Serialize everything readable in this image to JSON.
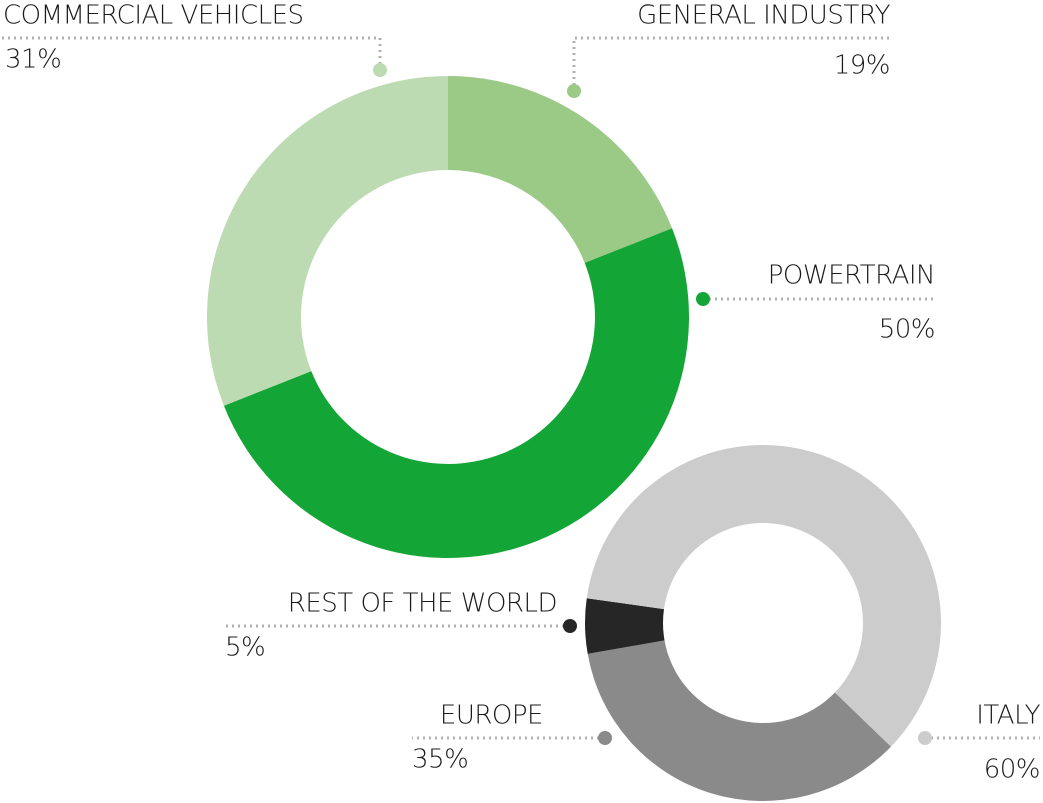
{
  "chart_data": [
    {
      "type": "pie",
      "categories": [
        "GENERAL INDUSTRY",
        "POWERTRAIN",
        "COMMERCIAL VEHICLES"
      ],
      "values": [
        19,
        50,
        31
      ],
      "value_labels": [
        "19%",
        "50%",
        "31%"
      ],
      "colors": [
        "#9bc986",
        "#14a537",
        "#bddbb3"
      ]
    },
    {
      "type": "pie",
      "categories": [
        "EUROPE",
        "REST OF THE WORLD",
        "ITALY"
      ],
      "values": [
        35,
        5,
        60
      ],
      "value_labels": [
        "35%",
        "5%",
        "60%"
      ],
      "colors": [
        "#8a8a8a",
        "#262626",
        "#cccccc"
      ]
    }
  ]
}
